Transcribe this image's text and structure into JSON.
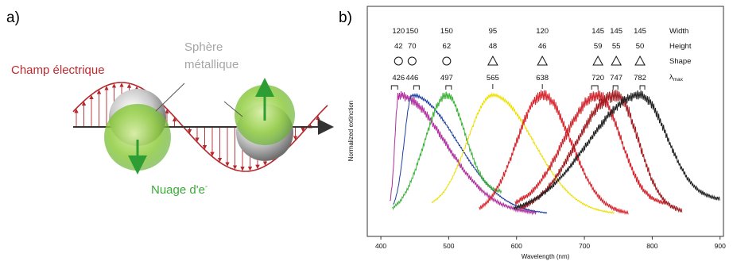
{
  "panel_a": {
    "letter": "a)",
    "label_field": "Champ électrique",
    "label_sphere": [
      "Sphère",
      "métallique"
    ],
    "label_cloud_main": "Nuage d'e",
    "label_cloud_sup": "-",
    "colors": {
      "field": "#b5282e",
      "sphere": "#a8a8a8",
      "cloud": "#7cc242",
      "axis": "#333333"
    }
  },
  "panel_b": {
    "letter": "b)",
    "row_labels": [
      "Width",
      "Height",
      "Shape",
      "λ",
      "max"
    ]
  },
  "chart_data": {
    "type": "line",
    "title": "",
    "xlabel": "Wavelength (nm)",
    "ylabel": "Normalized extinction",
    "xlim": [
      380,
      905
    ],
    "ylim": [
      0,
      1
    ],
    "x_ticks": [
      400,
      500,
      600,
      700,
      800,
      900
    ],
    "table": {
      "widths": [
        "120",
        "150",
        "150",
        "95",
        "120",
        "145",
        "145",
        "145"
      ],
      "heights": [
        "42",
        "70",
        "62",
        "48",
        "46",
        "59",
        "55",
        "50"
      ],
      "shapes": [
        "circle",
        "circle",
        "circle",
        "triangle",
        "triangle",
        "triangle",
        "triangle",
        "triangle"
      ],
      "lambda_max": [
        "426",
        "446",
        "497",
        "565",
        "638",
        "720",
        "747",
        "782"
      ]
    },
    "series": [
      {
        "color": "#b0309e",
        "peak": 426,
        "start": 413,
        "end": 630,
        "startY": 0.05,
        "endY": 0.0,
        "noise": 0.03
      },
      {
        "color": "#1f3f9e",
        "peak": 446,
        "start": 418,
        "end": 645,
        "startY": 0.03,
        "endY": 0.0,
        "noise": 0.01
      },
      {
        "color": "#3fb23c",
        "peak": 497,
        "start": 417,
        "end": 578,
        "startY": 0.0,
        "endY": 0.18,
        "noise": 0.025
      },
      {
        "color": "#ece000",
        "peak": 565,
        "start": 475,
        "end": 745,
        "startY": 0.05,
        "endY": 0.0,
        "noise": 0.012
      },
      {
        "color": "#d8262e",
        "peak": 638,
        "start": 545,
        "end": 765,
        "startY": 0.0,
        "endY": 0.0,
        "noise": 0.035
      },
      {
        "color": "#d0262e",
        "peak": 720,
        "start": 598,
        "end": 820,
        "startY": 0.05,
        "endY": 0.08,
        "noise": 0.04
      },
      {
        "color": "#a01e22",
        "peak": 747,
        "start": 605,
        "end": 845,
        "startY": 0.0,
        "endY": 0.02,
        "noise": 0.04
      },
      {
        "color": "#222222",
        "peak": 782,
        "start": 596,
        "end": 900,
        "startY": 0.0,
        "endY": 0.12,
        "noise": 0.03
      }
    ]
  }
}
